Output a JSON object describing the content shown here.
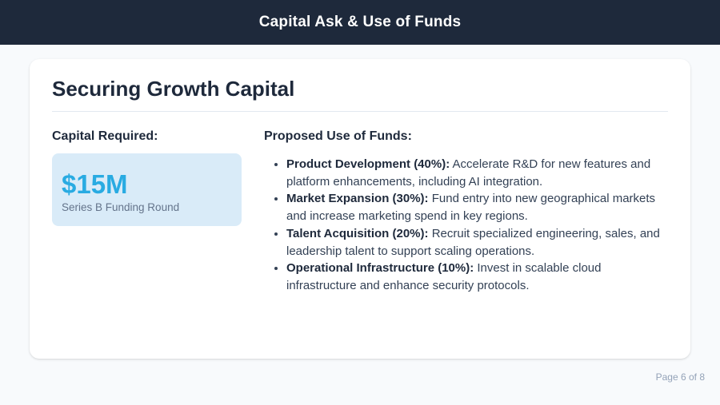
{
  "header": {
    "title": "Capital Ask & Use of Funds"
  },
  "slide": {
    "title": "Securing Growth Capital",
    "capital_required": {
      "heading": "Capital Required:",
      "amount": "$15M",
      "round": "Series B Funding Round"
    },
    "use_of_funds": {
      "heading": "Proposed Use of Funds:",
      "items": [
        {
          "label": "Product Development (40%):",
          "text": "Accelerate R&D for new features and platform enhancements, including AI integration."
        },
        {
          "label": "Market Expansion (30%):",
          "text": "Fund entry into new geographical markets and increase marketing spend in key regions."
        },
        {
          "label": "Talent Acquisition (20%):",
          "text": "Recruit specialized engineering, sales, and leadership talent to support scaling operations."
        },
        {
          "label": "Operational Infrastructure (10%):",
          "text": "Invest in scalable cloud infrastructure and enhance security protocols."
        }
      ]
    }
  },
  "footer": {
    "page_indicator": "Page 6 of 8"
  },
  "colors": {
    "header_bg": "#1e293b",
    "page_bg": "#f8fafc",
    "heading_color": "#1e293b",
    "accent_blue": "#29abe2",
    "highlight_bg": "#d9ebf8"
  }
}
